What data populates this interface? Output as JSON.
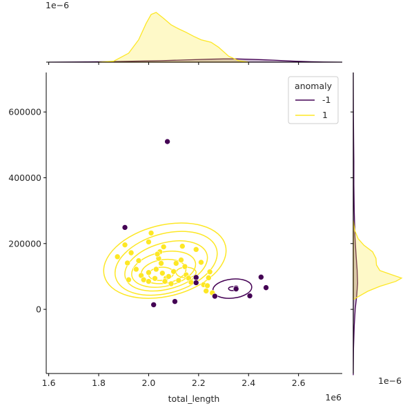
{
  "chart_data": {
    "type": "jointplot",
    "hue_title": "anomaly",
    "colors": {
      "anomaly": "#440154",
      "normal": "#fde725"
    },
    "series": [
      {
        "name": "-1",
        "key": "anomaly"
      },
      {
        "name": "1",
        "key": "normal"
      }
    ],
    "x": {
      "label": "total_length",
      "offset": "1e6",
      "lim": [
        1.59,
        2.775
      ],
      "ticks": [
        1.6,
        1.8,
        2.0,
        2.2,
        2.4,
        2.6
      ],
      "tick_labels": [
        "1.6",
        "1.8",
        "2.0",
        "2.2",
        "2.4",
        "2.6"
      ]
    },
    "y": {
      "label": "",
      "lim": [
        -195000,
        720000
      ],
      "ticks": [
        0,
        200000,
        400000,
        600000
      ],
      "tick_labels": [
        "0",
        "200000",
        "400000",
        "600000"
      ]
    },
    "marginal_offsets": {
      "top_y": "1e−6",
      "right_x": "1e−6"
    },
    "points_anomaly": [
      [
        2.075,
        510000
      ],
      [
        1.905,
        249000
      ],
      [
        2.02,
        14000
      ],
      [
        2.105,
        24000
      ],
      [
        2.19,
        97000
      ],
      [
        2.19,
        81000
      ],
      [
        2.265,
        40000
      ],
      [
        2.35,
        65000
      ],
      [
        2.35,
        62000
      ],
      [
        2.405,
        41000
      ],
      [
        2.45,
        98000
      ],
      [
        2.47,
        66000
      ]
    ],
    "points_normal": [
      [
        1.875,
        160000
      ],
      [
        1.93,
        172000
      ],
      [
        1.905,
        196000
      ],
      [
        2.01,
        232000
      ],
      [
        1.915,
        141000
      ],
      [
        1.95,
        122000
      ],
      [
        1.97,
        103000
      ],
      [
        2.0,
        112000
      ],
      [
        2.03,
        122000
      ],
      [
        2.04,
        155000
      ],
      [
        2.045,
        175000
      ],
      [
        2.06,
        190000
      ],
      [
        2.05,
        140000
      ],
      [
        2.055,
        110000
      ],
      [
        2.07,
        95000
      ],
      [
        2.08,
        100000
      ],
      [
        2.1,
        115000
      ],
      [
        2.11,
        140000
      ],
      [
        2.13,
        150000
      ],
      [
        2.135,
        192000
      ],
      [
        2.145,
        130000
      ],
      [
        2.15,
        105000
      ],
      [
        2.16,
        95000
      ],
      [
        2.17,
        82000
      ],
      [
        2.19,
        182000
      ],
      [
        2.21,
        143000
      ],
      [
        2.22,
        75000
      ],
      [
        2.23,
        56000
      ],
      [
        2.235,
        72000
      ],
      [
        2.24,
        96000
      ],
      [
        2.245,
        114000
      ],
      [
        2.255,
        50000
      ],
      [
        1.92,
        90000
      ],
      [
        1.98,
        90000
      ],
      [
        2.0,
        85000
      ],
      [
        2.025,
        94000
      ],
      [
        2.065,
        85000
      ],
      [
        2.09,
        78000
      ],
      [
        2.12,
        88000
      ],
      [
        2.0,
        205000
      ],
      [
        2.035,
        168000
      ],
      [
        1.96,
        148000
      ]
    ],
    "contours_normal": [
      {
        "cx": 2.065,
        "cy": 148000,
        "rx": 0.25,
        "ry": 108000,
        "rot": -14
      },
      {
        "cx": 2.07,
        "cy": 140000,
        "rx": 0.21,
        "ry": 90000,
        "rot": -16
      },
      {
        "cx": 2.07,
        "cy": 132000,
        "rx": 0.17,
        "ry": 70000,
        "rot": -16
      },
      {
        "cx": 2.06,
        "cy": 122000,
        "rx": 0.13,
        "ry": 52000,
        "rot": -12
      },
      {
        "cx": 2.06,
        "cy": 115000,
        "rx": 0.09,
        "ry": 36000,
        "rot": -8
      },
      {
        "cx": 2.05,
        "cy": 108000,
        "rx": 0.05,
        "ry": 20000,
        "rot": -5
      },
      {
        "cx": 2.15,
        "cy": 112000,
        "rx": 0.04,
        "ry": 16000,
        "rot": 0
      }
    ],
    "contours_anomaly": [
      {
        "cx": 2.335,
        "cy": 63000,
        "rx": 0.078,
        "ry": 29000,
        "rot": -6
      },
      {
        "cx": 2.335,
        "cy": 63000,
        "rx": 0.015,
        "ry": 6000,
        "rot": 0
      }
    ],
    "density_top": {
      "normal": [
        [
          1.8,
          0
        ],
        [
          1.86,
          0.02
        ],
        [
          1.92,
          0.18
        ],
        [
          1.96,
          0.45
        ],
        [
          1.99,
          0.78
        ],
        [
          2.01,
          0.96
        ],
        [
          2.03,
          1.0
        ],
        [
          2.06,
          0.88
        ],
        [
          2.09,
          0.75
        ],
        [
          2.12,
          0.67
        ],
        [
          2.15,
          0.6
        ],
        [
          2.18,
          0.52
        ],
        [
          2.21,
          0.45
        ],
        [
          2.25,
          0.4
        ],
        [
          2.28,
          0.3
        ],
        [
          2.32,
          0.12
        ],
        [
          2.36,
          0.03
        ],
        [
          2.4,
          0
        ]
      ],
      "anomaly": [
        [
          1.6,
          0
        ],
        [
          1.75,
          0.005
        ],
        [
          1.85,
          0.01
        ],
        [
          1.95,
          0.02
        ],
        [
          2.05,
          0.03
        ],
        [
          2.15,
          0.045
        ],
        [
          2.25,
          0.06
        ],
        [
          2.3,
          0.065
        ],
        [
          2.35,
          0.065
        ],
        [
          2.42,
          0.055
        ],
        [
          2.5,
          0.04
        ],
        [
          2.58,
          0.02
        ],
        [
          2.65,
          0.008
        ],
        [
          2.7,
          0.003
        ],
        [
          2.775,
          0
        ]
      ]
    },
    "density_right": {
      "normal": [
        [
          30000,
          0
        ],
        [
          40000,
          0.12
        ],
        [
          55000,
          0.3
        ],
        [
          70000,
          0.55
        ],
        [
          85000,
          0.88
        ],
        [
          95000,
          1.0
        ],
        [
          105000,
          0.8
        ],
        [
          118000,
          0.55
        ],
        [
          135000,
          0.48
        ],
        [
          155000,
          0.47
        ],
        [
          175000,
          0.4
        ],
        [
          195000,
          0.22
        ],
        [
          215000,
          0.1
        ],
        [
          240000,
          0.03
        ],
        [
          270000,
          0
        ]
      ],
      "anomaly": [
        [
          -200000,
          0
        ],
        [
          -120000,
          0.005
        ],
        [
          -50000,
          0.02
        ],
        [
          0,
          0.04
        ],
        [
          40000,
          0.07
        ],
        [
          80000,
          0.09
        ],
        [
          120000,
          0.08
        ],
        [
          160000,
          0.06
        ],
        [
          220000,
          0.035
        ],
        [
          300000,
          0.02
        ],
        [
          380000,
          0.012
        ],
        [
          450000,
          0.012
        ],
        [
          510000,
          0.008
        ],
        [
          600000,
          0.003
        ],
        [
          720000,
          0
        ]
      ]
    }
  }
}
